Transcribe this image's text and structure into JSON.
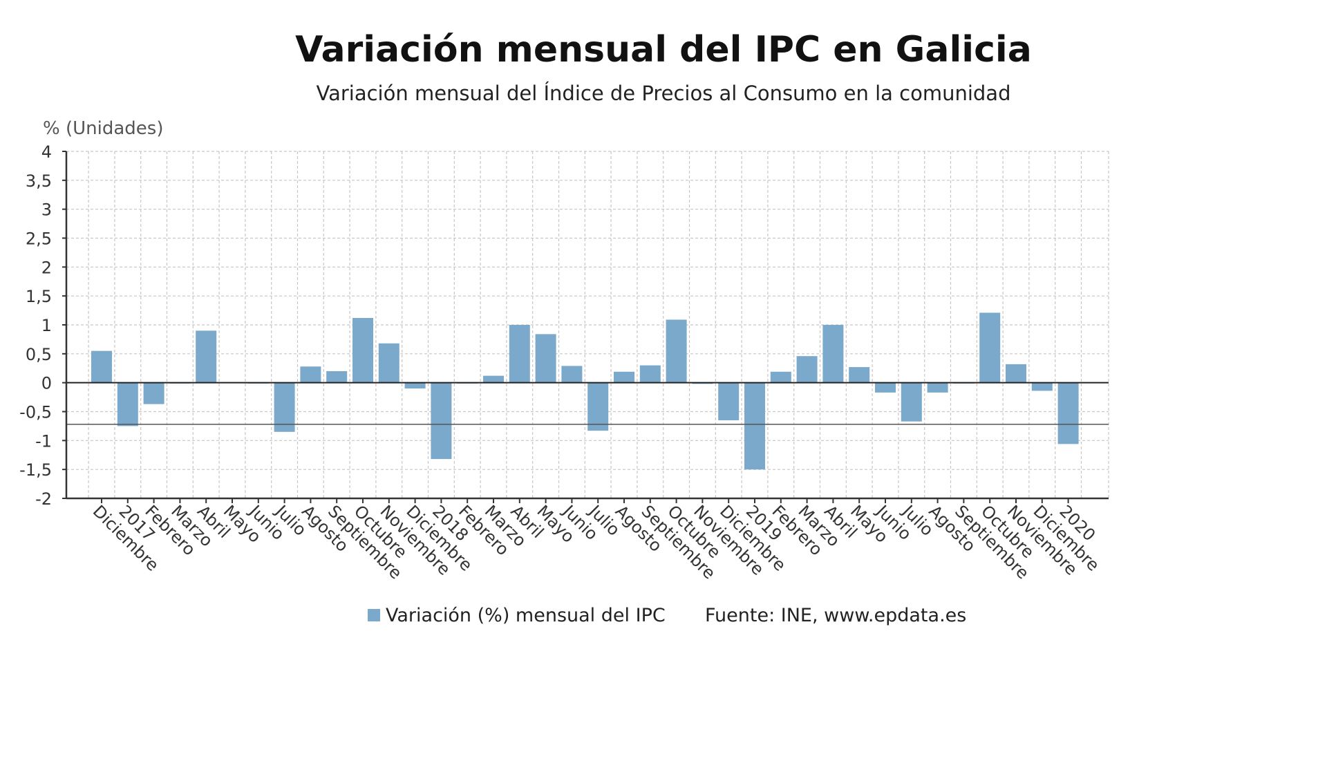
{
  "chart_data": {
    "type": "bar",
    "title": "Variación mensual del IPC en Galicia",
    "subtitle": "Variación mensual del Índice de Precios al Consumo en la comunidad",
    "ylabel": "% (Unidades)",
    "xlabel": "",
    "ylim": [
      -2,
      4
    ],
    "yticks": [
      "-2",
      "-1,5",
      "-1",
      "-0,5",
      "0",
      "0,5",
      "1",
      "1,5",
      "2",
      "2,5",
      "3",
      "3,5",
      "4"
    ],
    "grid": true,
    "legend_position": "bottom",
    "categories": [
      "Diciembre",
      "2017",
      "Febrero",
      "Marzo",
      "Abril",
      "Mayo",
      "Junio",
      "Julio",
      "Agosto",
      "Septiembre",
      "Octubre",
      "Noviembre",
      "Diciembre",
      "2018",
      "Febrero",
      "Marzo",
      "Abril",
      "Mayo",
      "Junio",
      "Julio",
      "Agosto",
      "Septiembre",
      "Octubre",
      "Noviembre",
      "Diciembre",
      "2019",
      "Febrero",
      "Marzo",
      "Abril",
      "Mayo",
      "Junio",
      "Julio",
      "Agosto",
      "Septiembre",
      "Octubre",
      "Noviembre",
      "Diciembre",
      "2020"
    ],
    "series": [
      {
        "name": "Variación (%) mensual del IPC",
        "color": "#7aa9cc",
        "values": [
          0.55,
          -0.75,
          -0.37,
          0.0,
          0.9,
          0.01,
          0.0,
          -0.85,
          0.28,
          0.2,
          1.12,
          0.68,
          -0.1,
          -1.32,
          0.0,
          0.12,
          1.0,
          0.84,
          0.29,
          -0.83,
          0.19,
          0.3,
          1.09,
          -0.02,
          -0.65,
          -1.5,
          0.19,
          0.46,
          1.0,
          0.27,
          -0.17,
          -0.67,
          -0.17,
          -0.01,
          1.21,
          0.32,
          -0.14,
          -1.06
        ]
      }
    ],
    "reference_line": -0.72,
    "source": "Fuente: INE, www.epdata.es"
  }
}
